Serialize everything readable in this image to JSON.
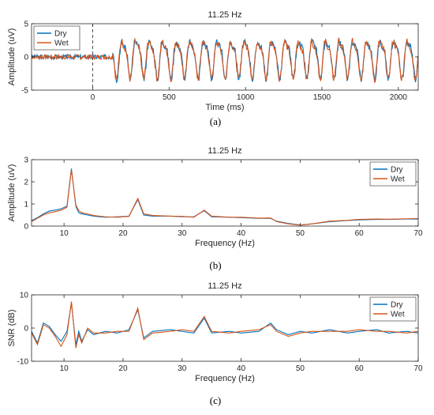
{
  "chart_data": [
    {
      "type": "line",
      "panel": "a",
      "caption": "(a)",
      "title": "11.25 Hz",
      "xlabel": "Time (ms)",
      "ylabel": "Amplitude (uV)",
      "xlim": [
        -400,
        2130
      ],
      "ylim": [
        -5,
        5
      ],
      "xticks": [
        0,
        500,
        1000,
        1500,
        2000
      ],
      "yticks": [
        -5,
        0,
        5
      ],
      "stimulus_onset_marker": 0,
      "legend": "top-left",
      "signal": {
        "frequency_hz": 11.25,
        "pre_noise": 0.35,
        "onset_ms": 0,
        "amplitude": 2.6
      },
      "series": [
        {
          "name": "Dry",
          "color": "#0072BD",
          "phase_offset": 0.0,
          "seed": 3
        },
        {
          "name": "Wet",
          "color": "#D95319",
          "phase_offset": 0.15,
          "seed": 7
        }
      ]
    },
    {
      "type": "line",
      "panel": "b",
      "caption": "(b)",
      "title": "11.25 Hz",
      "xlabel": "Frequency (Hz)",
      "ylabel": "Amplitude (uV)",
      "xlim": [
        4.5,
        70
      ],
      "ylim": [
        0,
        3
      ],
      "xticks": [
        10,
        20,
        30,
        40,
        50,
        60,
        70
      ],
      "yticks": [
        0,
        1,
        2,
        3
      ],
      "legend": "top-right",
      "series": [
        {
          "name": "Dry",
          "color": "#0072BD",
          "points": [
            [
              4.5,
              0.25
            ],
            [
              5.5,
              0.38
            ],
            [
              6.5,
              0.55
            ],
            [
              7.5,
              0.68
            ],
            [
              8.5,
              0.72
            ],
            [
              9.5,
              0.78
            ],
            [
              10.5,
              0.9
            ],
            [
              11.25,
              2.6
            ],
            [
              12,
              0.9
            ],
            [
              12.5,
              0.6
            ],
            [
              13,
              0.55
            ],
            [
              14,
              0.5
            ],
            [
              15,
              0.45
            ],
            [
              17,
              0.4
            ],
            [
              19,
              0.42
            ],
            [
              21,
              0.45
            ],
            [
              22.5,
              1.2
            ],
            [
              23.5,
              0.5
            ],
            [
              25,
              0.45
            ],
            [
              28,
              0.45
            ],
            [
              30,
              0.42
            ],
            [
              32,
              0.42
            ],
            [
              33.75,
              0.7
            ],
            [
              35,
              0.42
            ],
            [
              38,
              0.4
            ],
            [
              40,
              0.38
            ],
            [
              43,
              0.35
            ],
            [
              45,
              0.35
            ],
            [
              46,
              0.22
            ],
            [
              48,
              0.12
            ],
            [
              50,
              0.05
            ],
            [
              52,
              0.1
            ],
            [
              55,
              0.2
            ],
            [
              58,
              0.25
            ],
            [
              60,
              0.28
            ],
            [
              63,
              0.3
            ],
            [
              65,
              0.3
            ],
            [
              68,
              0.32
            ],
            [
              70,
              0.32
            ]
          ]
        },
        {
          "name": "Wet",
          "color": "#D95319",
          "points": [
            [
              4.5,
              0.2
            ],
            [
              5.5,
              0.35
            ],
            [
              6.5,
              0.5
            ],
            [
              7.5,
              0.6
            ],
            [
              8.5,
              0.65
            ],
            [
              9.5,
              0.72
            ],
            [
              10.5,
              0.85
            ],
            [
              11.25,
              2.55
            ],
            [
              12,
              0.95
            ],
            [
              12.5,
              0.7
            ],
            [
              13,
              0.6
            ],
            [
              14,
              0.55
            ],
            [
              15,
              0.48
            ],
            [
              17,
              0.42
            ],
            [
              19,
              0.4
            ],
            [
              21,
              0.44
            ],
            [
              22.5,
              1.25
            ],
            [
              23.5,
              0.55
            ],
            [
              25,
              0.48
            ],
            [
              28,
              0.45
            ],
            [
              30,
              0.44
            ],
            [
              32,
              0.4
            ],
            [
              33.75,
              0.72
            ],
            [
              35,
              0.45
            ],
            [
              38,
              0.4
            ],
            [
              40,
              0.4
            ],
            [
              43,
              0.36
            ],
            [
              45,
              0.37
            ],
            [
              46,
              0.2
            ],
            [
              48,
              0.1
            ],
            [
              50,
              0.04
            ],
            [
              52,
              0.1
            ],
            [
              55,
              0.22
            ],
            [
              58,
              0.26
            ],
            [
              60,
              0.3
            ],
            [
              63,
              0.32
            ],
            [
              65,
              0.31
            ],
            [
              68,
              0.33
            ],
            [
              70,
              0.34
            ]
          ]
        }
      ]
    },
    {
      "type": "line",
      "panel": "c",
      "caption": "(c)",
      "title": "11.25 Hz",
      "xlabel": "Frequency (Hz)",
      "ylabel": "SNR (dB)",
      "xlim": [
        4.5,
        70
      ],
      "ylim": [
        -10,
        10
      ],
      "xticks": [
        10,
        20,
        30,
        40,
        50,
        60,
        70
      ],
      "yticks": [
        -10,
        0,
        10
      ],
      "legend": "top-right",
      "series": [
        {
          "name": "Dry",
          "color": "#0072BD",
          "points": [
            [
              4.5,
              -1
            ],
            [
              5.5,
              -4.5
            ],
            [
              6.5,
              1.5
            ],
            [
              7.5,
              0.5
            ],
            [
              8.5,
              -2
            ],
            [
              9.5,
              -4
            ],
            [
              10.5,
              -1
            ],
            [
              11.25,
              7.5
            ],
            [
              12,
              -5
            ],
            [
              12.5,
              -1
            ],
            [
              13,
              -4
            ],
            [
              14,
              -0.5
            ],
            [
              15,
              -2
            ],
            [
              17,
              -1
            ],
            [
              19,
              -1.5
            ],
            [
              21,
              -0.5
            ],
            [
              22.5,
              5.5
            ],
            [
              23.5,
              -3
            ],
            [
              25,
              -1
            ],
            [
              28,
              -0.5
            ],
            [
              30,
              -1
            ],
            [
              32,
              -1.5
            ],
            [
              33.75,
              3
            ],
            [
              35,
              -1.5
            ],
            [
              38,
              -1
            ],
            [
              40,
              -1.5
            ],
            [
              43,
              -1
            ],
            [
              45,
              1.5
            ],
            [
              46,
              -0.5
            ],
            [
              48,
              -2
            ],
            [
              50,
              -1
            ],
            [
              52,
              -1.5
            ],
            [
              55,
              -0.5
            ],
            [
              58,
              -1.5
            ],
            [
              60,
              -1
            ],
            [
              63,
              -0.5
            ],
            [
              65,
              -1.5
            ],
            [
              68,
              -1
            ],
            [
              70,
              -1.5
            ]
          ]
        },
        {
          "name": "Wet",
          "color": "#D95319",
          "points": [
            [
              4.5,
              -1.5
            ],
            [
              5.5,
              -5
            ],
            [
              6.5,
              1
            ],
            [
              7.5,
              0
            ],
            [
              8.5,
              -2.5
            ],
            [
              9.5,
              -5.5
            ],
            [
              10.5,
              -2
            ],
            [
              11.25,
              8
            ],
            [
              12,
              -6
            ],
            [
              12.5,
              -2
            ],
            [
              13,
              -4.5
            ],
            [
              14,
              0
            ],
            [
              15,
              -1.5
            ],
            [
              17,
              -1.5
            ],
            [
              19,
              -1
            ],
            [
              21,
              -1
            ],
            [
              22.5,
              6
            ],
            [
              23.5,
              -3.5
            ],
            [
              25,
              -1.5
            ],
            [
              28,
              -1
            ],
            [
              30,
              -0.5
            ],
            [
              32,
              -1
            ],
            [
              33.75,
              3.5
            ],
            [
              35,
              -1
            ],
            [
              38,
              -1.5
            ],
            [
              40,
              -1
            ],
            [
              43,
              -0.5
            ],
            [
              45,
              1
            ],
            [
              46,
              -1
            ],
            [
              48,
              -2.5
            ],
            [
              50,
              -1.5
            ],
            [
              52,
              -1
            ],
            [
              55,
              -1
            ],
            [
              58,
              -1
            ],
            [
              60,
              -0.5
            ],
            [
              63,
              -1
            ],
            [
              65,
              -1
            ],
            [
              68,
              -1.5
            ],
            [
              70,
              -1
            ]
          ]
        }
      ]
    }
  ]
}
